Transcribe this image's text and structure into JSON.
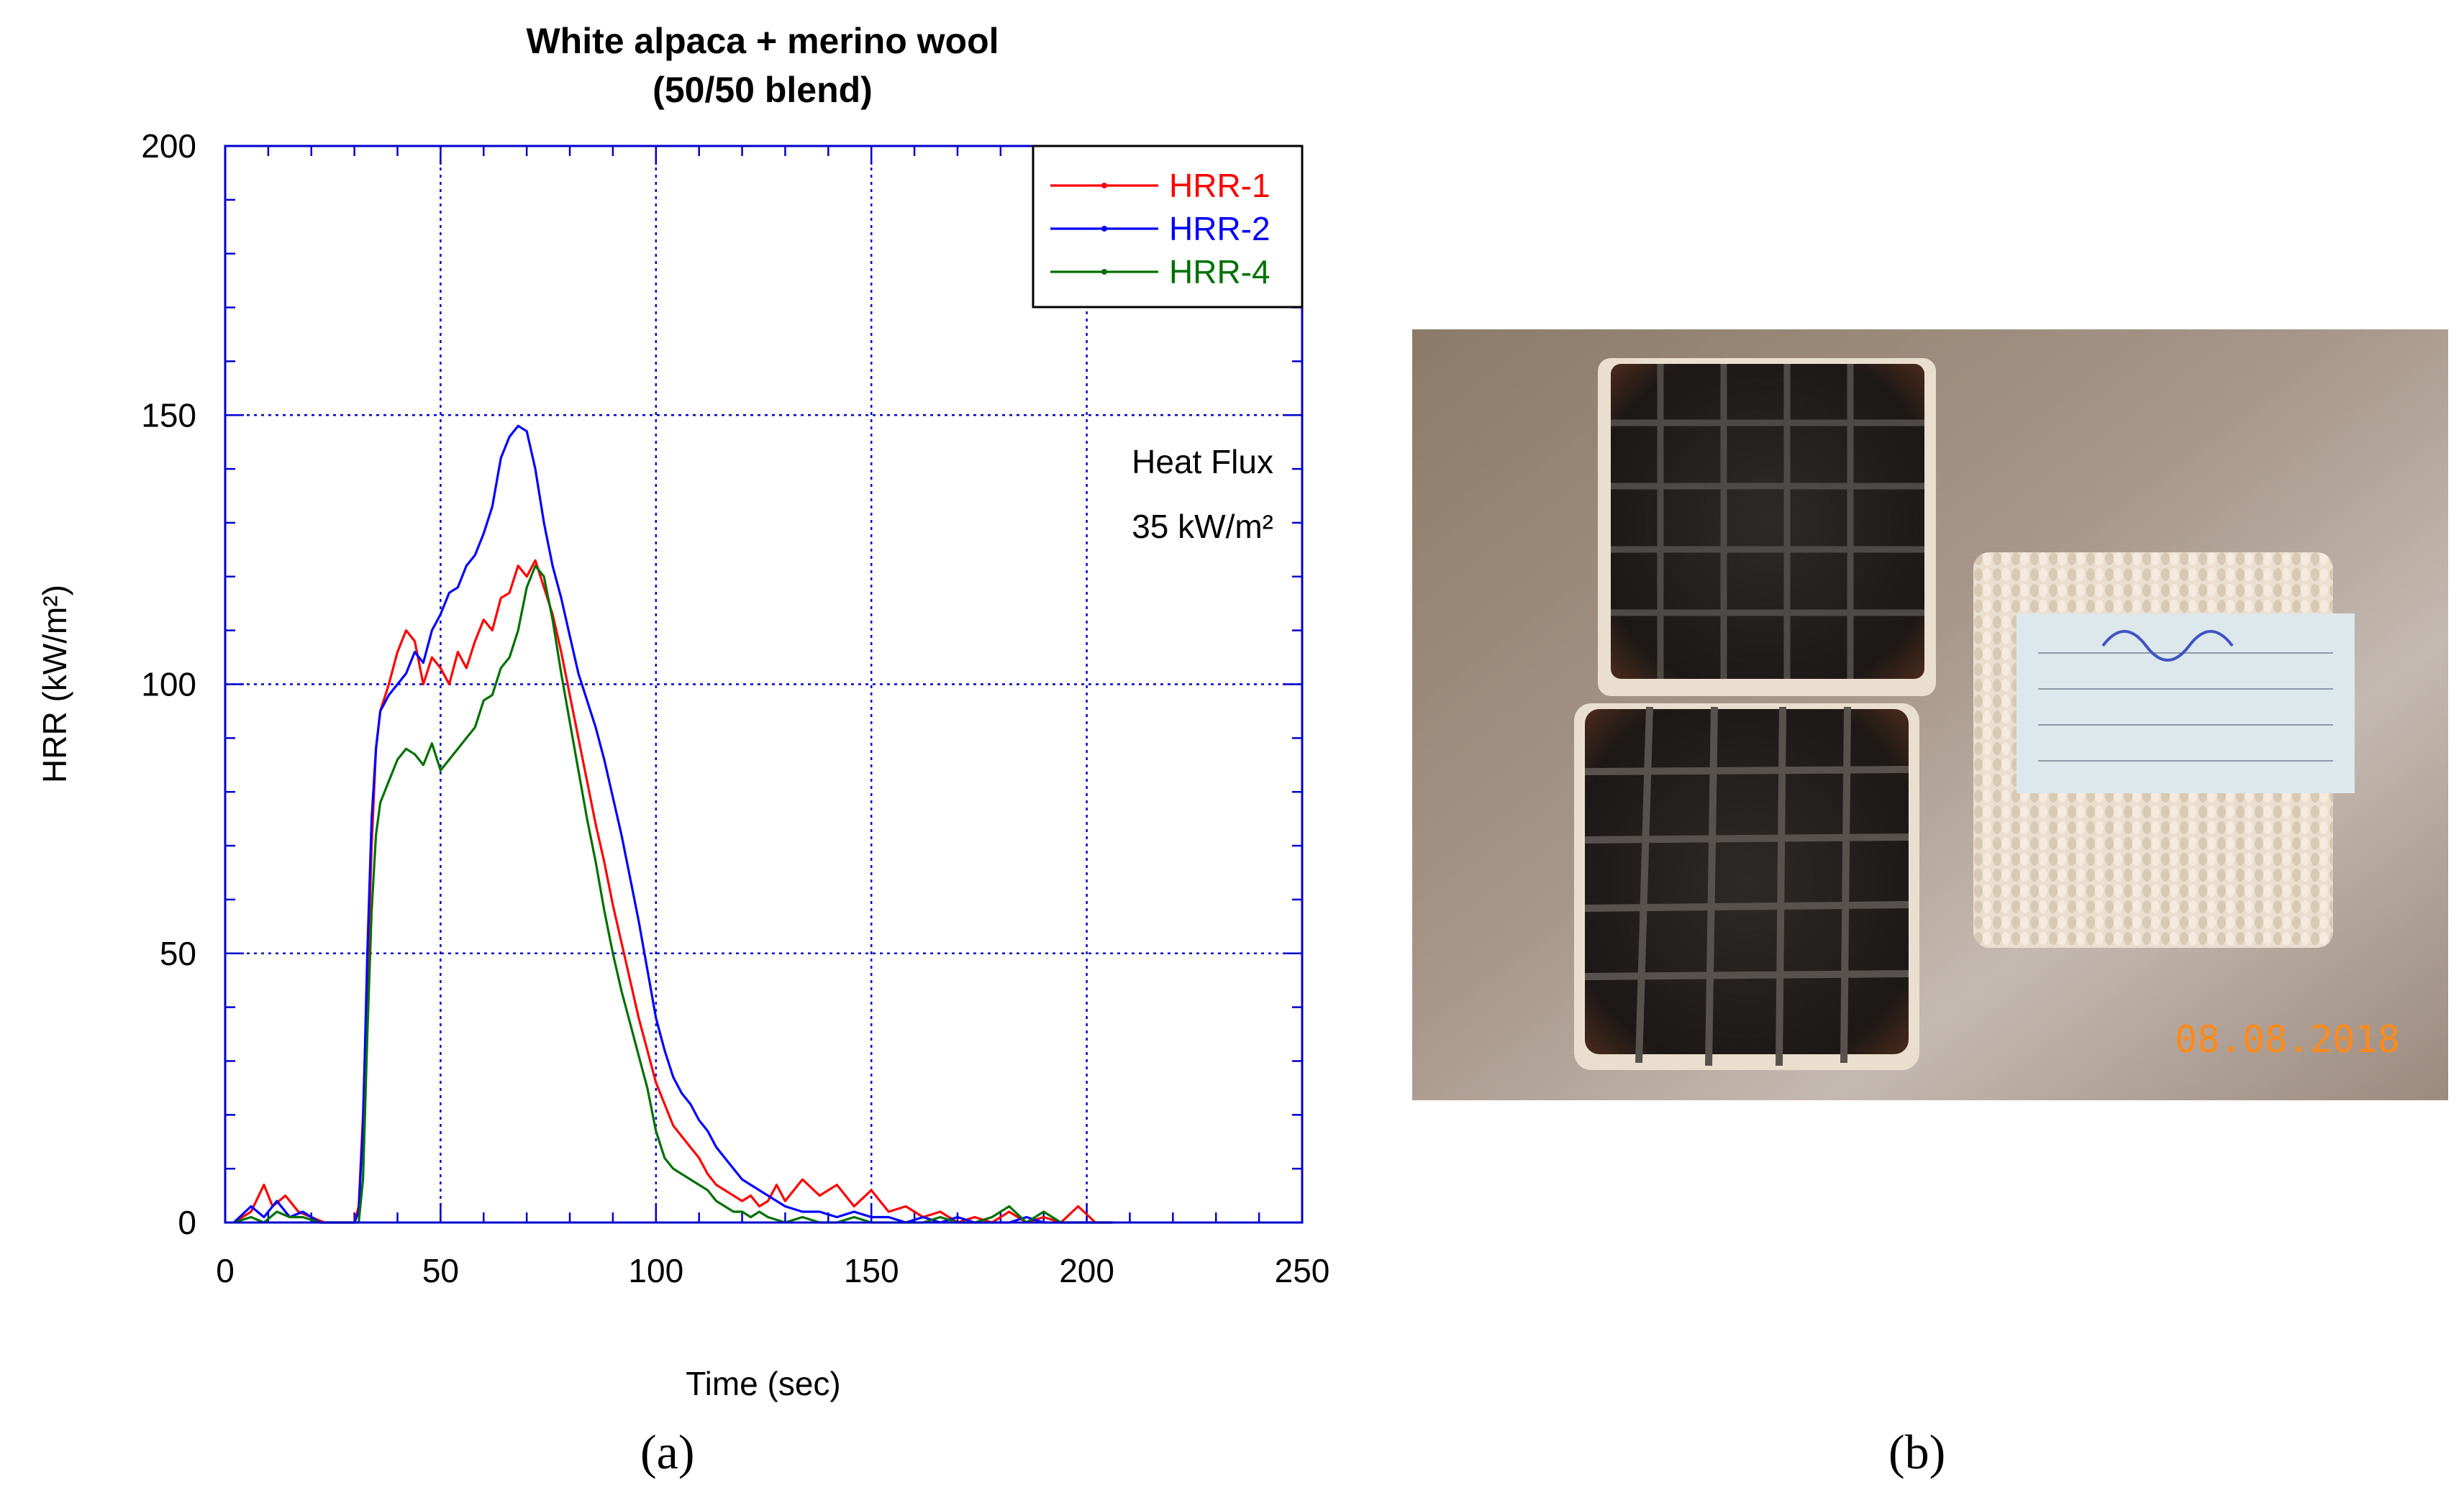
{
  "chart_data": {
    "type": "line",
    "title": "White alpaca + merino wool",
    "subtitle": "(50/50 blend)",
    "xlabel": "Time (sec)",
    "ylabel": "HRR (kW/m²)",
    "xlim": [
      0,
      250
    ],
    "ylim": [
      0,
      200
    ],
    "xticks": [
      0,
      50,
      100,
      150,
      200,
      250
    ],
    "yticks": [
      0,
      50,
      100,
      150,
      200
    ],
    "grid": true,
    "legend_position": "top-right",
    "annotation_line1": "Heat Flux",
    "annotation_line2": "35 kW/m²",
    "series": [
      {
        "name": "HRR-1",
        "color": "#ff0000",
        "x": [
          2,
          6,
          9,
          11,
          14,
          17,
          20,
          23,
          26,
          28,
          30,
          31,
          32,
          33,
          34,
          35,
          36,
          38,
          40,
          42,
          44,
          46,
          48,
          50,
          52,
          54,
          56,
          58,
          60,
          62,
          64,
          66,
          68,
          70,
          72,
          74,
          76,
          78,
          80,
          82,
          84,
          86,
          88,
          90,
          92,
          94,
          96,
          98,
          100,
          102,
          104,
          106,
          108,
          110,
          112,
          114,
          116,
          118,
          120,
          122,
          124,
          126,
          128,
          130,
          134,
          138,
          142,
          146,
          150,
          154,
          158,
          162,
          166,
          170,
          174,
          178,
          182,
          186,
          190,
          194,
          198,
          202,
          206
        ],
        "y": [
          0,
          2,
          7,
          3,
          5,
          2,
          1,
          0,
          0,
          0,
          0,
          3,
          20,
          45,
          70,
          88,
          95,
          100,
          106,
          110,
          108,
          100,
          105,
          103,
          100,
          106,
          103,
          108,
          112,
          110,
          116,
          117,
          122,
          120,
          123,
          118,
          113,
          106,
          98,
          90,
          82,
          74,
          67,
          59,
          52,
          45,
          38,
          32,
          26,
          22,
          18,
          16,
          14,
          12,
          9,
          7,
          6,
          5,
          4,
          5,
          3,
          4,
          7,
          4,
          8,
          5,
          7,
          3,
          6,
          2,
          3,
          1,
          2,
          0,
          1,
          0,
          2,
          0,
          1,
          0,
          3,
          0,
          0
        ]
      },
      {
        "name": "HRR-2",
        "color": "#0000ff",
        "x": [
          2,
          6,
          9,
          12,
          15,
          18,
          22,
          26,
          28,
          30,
          31,
          32,
          33,
          34,
          35,
          36,
          38,
          40,
          42,
          44,
          46,
          48,
          50,
          52,
          54,
          56,
          58,
          60,
          62,
          64,
          66,
          68,
          70,
          72,
          74,
          76,
          78,
          80,
          82,
          84,
          86,
          88,
          90,
          92,
          94,
          96,
          98,
          100,
          102,
          104,
          106,
          108,
          110,
          112,
          114,
          116,
          118,
          120,
          122,
          124,
          126,
          128,
          130,
          134,
          138,
          142,
          146,
          150,
          154,
          158,
          162,
          166,
          170,
          174,
          178,
          182,
          186,
          190,
          194,
          198,
          202,
          206
        ],
        "y": [
          0,
          3,
          1,
          4,
          1,
          2,
          0,
          0,
          0,
          0,
          2,
          18,
          50,
          75,
          88,
          95,
          98,
          100,
          102,
          106,
          104,
          110,
          113,
          117,
          118,
          122,
          124,
          128,
          133,
          142,
          146,
          148,
          147,
          140,
          130,
          122,
          116,
          109,
          102,
          97,
          92,
          86,
          79,
          72,
          64,
          56,
          47,
          38,
          32,
          27,
          24,
          22,
          19,
          17,
          14,
          12,
          10,
          8,
          7,
          6,
          5,
          4,
          3,
          2,
          2,
          1,
          2,
          1,
          1,
          0,
          1,
          0,
          1,
          0,
          0,
          0,
          1,
          0,
          0,
          0,
          0,
          0
        ]
      },
      {
        "name": "HRR-4",
        "color": "#007000",
        "x": [
          2,
          6,
          9,
          12,
          15,
          18,
          22,
          26,
          28,
          30,
          31,
          32,
          33,
          34,
          35,
          36,
          38,
          40,
          42,
          44,
          46,
          48,
          50,
          52,
          54,
          56,
          58,
          60,
          62,
          64,
          66,
          68,
          70,
          72,
          74,
          76,
          78,
          80,
          82,
          84,
          86,
          88,
          90,
          92,
          94,
          96,
          98,
          100,
          102,
          104,
          106,
          108,
          110,
          112,
          114,
          116,
          118,
          120,
          122,
          124,
          126,
          130,
          134,
          138,
          142,
          146,
          150,
          154,
          158,
          162,
          166,
          170,
          174,
          178,
          182,
          186,
          190,
          194,
          198,
          202,
          206
        ],
        "y": [
          0,
          1,
          0,
          2,
          1,
          1,
          0,
          0,
          0,
          0,
          0,
          8,
          35,
          58,
          72,
          78,
          82,
          86,
          88,
          87,
          85,
          89,
          84,
          86,
          88,
          90,
          92,
          97,
          98,
          103,
          105,
          110,
          118,
          122,
          120,
          112,
          102,
          93,
          84,
          75,
          67,
          58,
          50,
          43,
          37,
          31,
          25,
          17,
          12,
          10,
          9,
          8,
          7,
          6,
          4,
          3,
          2,
          2,
          1,
          2,
          1,
          0,
          1,
          0,
          0,
          1,
          0,
          0,
          0,
          0,
          1,
          0,
          0,
          1,
          3,
          0,
          2,
          0,
          0,
          0,
          0
        ]
      }
    ]
  },
  "panel_labels": {
    "a": "(a)",
    "b": "(b)"
  },
  "photo": {
    "date_stamp": "08.08.2018"
  }
}
